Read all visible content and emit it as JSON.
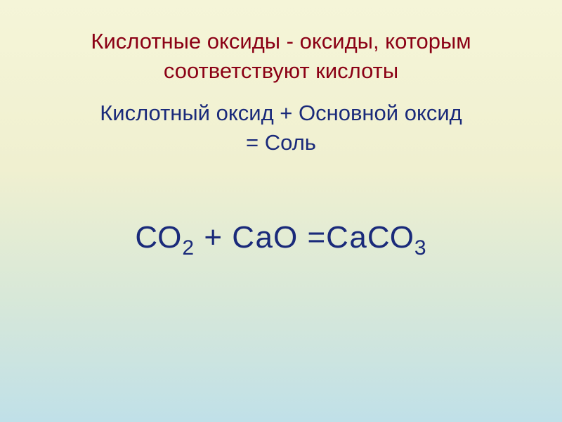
{
  "slide": {
    "title_line1": "Кислотные оксиды - оксиды, которым",
    "title_line2": "соответствуют кислоты",
    "subtitle_line1": "Кислотный оксид + Основной оксид",
    "subtitle_line2": "=  Соль",
    "formula": {
      "part1": "СО",
      "sub1": "2",
      "part2": " + СаО =СаСО",
      "sub2": "3"
    },
    "colors": {
      "title_color": "#8b0015",
      "body_color": "#1a2a7a",
      "bg_top": "#f5f5d8",
      "bg_bottom": "#c0e0e8"
    },
    "typography": {
      "title_fontsize": 31,
      "subtitle_fontsize": 31,
      "formula_fontsize": 44,
      "sub_fontsize": 30
    }
  }
}
